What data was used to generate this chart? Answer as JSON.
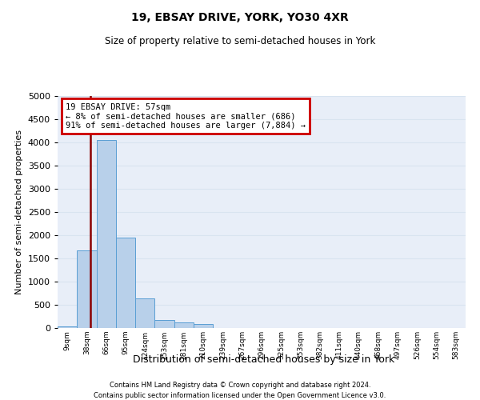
{
  "title1": "19, EBSAY DRIVE, YORK, YO30 4XR",
  "title2": "Size of property relative to semi-detached houses in York",
  "xlabel": "Distribution of semi-detached houses by size in York",
  "ylabel": "Number of semi-detached properties",
  "bin_labels": [
    "9sqm",
    "38sqm",
    "66sqm",
    "95sqm",
    "124sqm",
    "153sqm",
    "181sqm",
    "210sqm",
    "239sqm",
    "267sqm",
    "296sqm",
    "325sqm",
    "353sqm",
    "382sqm",
    "411sqm",
    "440sqm",
    "468sqm",
    "497sqm",
    "526sqm",
    "554sqm",
    "583sqm"
  ],
  "bar_values": [
    30,
    1680,
    4050,
    1950,
    630,
    175,
    120,
    85,
    0,
    0,
    0,
    0,
    0,
    0,
    0,
    0,
    0,
    0,
    0,
    0,
    0
  ],
  "bar_color": "#b8d0ea",
  "bar_edge_color": "#5a9fd4",
  "vline_x": 1.68,
  "vline_color": "#8b0000",
  "annotation_line1": "19 EBSAY DRIVE: 57sqm",
  "annotation_line2": "← 8% of semi-detached houses are smaller (686)",
  "annotation_line3": "91% of semi-detached houses are larger (7,884) →",
  "annotation_box_color": "#ffffff",
  "annotation_box_edge": "#cc0000",
  "ylim": [
    0,
    5000
  ],
  "yticks": [
    0,
    500,
    1000,
    1500,
    2000,
    2500,
    3000,
    3500,
    4000,
    4500,
    5000
  ],
  "grid_color": "#d8e4f0",
  "background_color": "#e8eef8",
  "footer1": "Contains HM Land Registry data © Crown copyright and database right 2024.",
  "footer2": "Contains public sector information licensed under the Open Government Licence v3.0."
}
